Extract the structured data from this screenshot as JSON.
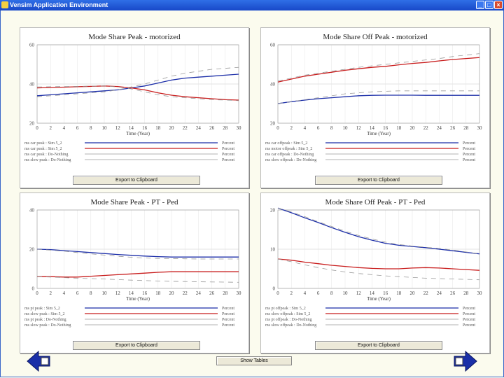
{
  "window": {
    "title": "Vensim Application Environment",
    "buttons": [
      "_",
      "□",
      "×"
    ]
  },
  "buttons": {
    "export_label": "Export to Clipboard",
    "show_tables_label": "Show Tables"
  },
  "colors": {
    "blue": "#1c2ea8",
    "red": "#c81c1c",
    "grid": "#c8c8c8"
  },
  "icons": {
    "back": "left-arrow-icon",
    "forward": "right-arrow-icon"
  },
  "chart_data": [
    {
      "type": "line",
      "title": "Mode Share Peak  -  motorized",
      "xlabel": "Time (Year)",
      "xlim": [
        0,
        30
      ],
      "ylim": [
        20,
        60
      ],
      "yticks": [
        20,
        40,
        60
      ],
      "x": [
        0,
        2,
        4,
        6,
        8,
        10,
        12,
        14,
        16,
        18,
        20,
        22,
        24,
        26,
        28,
        30
      ],
      "series": [
        {
          "name": "ms car peak : Sim 5_2",
          "unit": "Percent",
          "color": "blue",
          "dashed": false,
          "values": [
            34,
            34.5,
            35,
            35.5,
            36,
            36.5,
            37,
            38,
            39,
            40.5,
            42,
            43,
            43.5,
            44,
            44.5,
            45
          ]
        },
        {
          "name": "ms car peak : Sim 5_2",
          "unit": "Percent",
          "color": "red",
          "dashed": false,
          "values": [
            38,
            38.2,
            38.4,
            38.6,
            38.8,
            39,
            38.7,
            38,
            37,
            35.5,
            34.3,
            33.5,
            33,
            32.5,
            32,
            31.8
          ]
        },
        {
          "name": "ms car peak : Do-Nothing",
          "unit": "Percent",
          "color": "grey",
          "dashed": true,
          "values": [
            33.5,
            34,
            34.5,
            35,
            35.5,
            36,
            37,
            38.5,
            40,
            42,
            44,
            45.5,
            46.5,
            47.5,
            48,
            48.5
          ]
        },
        {
          "name": "ms slow peak : Do-Nothing",
          "unit": "Percent",
          "color": "grey",
          "dashed": true,
          "values": [
            38.5,
            38.6,
            38.7,
            38.8,
            38.9,
            39,
            38.5,
            37.5,
            36,
            34.5,
            33.5,
            33,
            32.5,
            32,
            31.8,
            31.5
          ]
        }
      ]
    },
    {
      "type": "line",
      "title": "Mode Share Off Peak  -  motorized",
      "xlabel": "Time (Year)",
      "xlim": [
        0,
        30
      ],
      "ylim": [
        20,
        60
      ],
      "yticks": [
        20,
        40,
        60
      ],
      "x": [
        0,
        2,
        4,
        6,
        8,
        10,
        12,
        14,
        16,
        18,
        20,
        22,
        24,
        26,
        28,
        30
      ],
      "series": [
        {
          "name": "ms car offpeak : Sim 5_2",
          "unit": "Percent",
          "color": "blue",
          "dashed": false,
          "values": [
            30,
            31,
            31.8,
            32.5,
            33,
            33.5,
            34,
            34.2,
            34.3,
            34.3,
            34.3,
            34.2,
            34.2,
            34.2,
            34.2,
            34.2
          ]
        },
        {
          "name": "ms motor offpeak : Sim 5_2",
          "unit": "Percent",
          "color": "red",
          "dashed": false,
          "values": [
            41,
            42.5,
            44,
            45,
            46,
            47,
            47.8,
            48.5,
            49,
            49.8,
            50.5,
            51,
            51.8,
            52.5,
            53,
            53.5
          ]
        },
        {
          "name": "ms car offpeak : Do-Nothing",
          "unit": "Percent",
          "color": "grey",
          "dashed": true,
          "values": [
            30,
            31,
            32,
            33,
            34,
            35,
            35.5,
            36,
            36.3,
            36.5,
            36.5,
            36.5,
            36.5,
            36.5,
            36.5,
            36.5
          ]
        },
        {
          "name": "ms slow offpeak : Do-Nothing",
          "unit": "Percent",
          "color": "grey",
          "dashed": true,
          "values": [
            41.5,
            43,
            44.5,
            45.5,
            46.5,
            47.5,
            48.5,
            49.3,
            50,
            50.8,
            51.5,
            52.3,
            53,
            54,
            54.8,
            55.5
          ]
        }
      ]
    },
    {
      "type": "line",
      "title": "Mode Share Peak  -  PT - Ped",
      "xlabel": "Time (Year)",
      "xlim": [
        0,
        30
      ],
      "ylim": [
        0,
        40
      ],
      "yticks": [
        0,
        20,
        40
      ],
      "x": [
        0,
        2,
        4,
        6,
        8,
        10,
        12,
        14,
        16,
        18,
        20,
        22,
        24,
        26,
        28,
        30
      ],
      "series": [
        {
          "name": "ms pt peak : Sim 5_2",
          "unit": "Percent",
          "color": "blue",
          "dashed": false,
          "values": [
            20,
            19.8,
            19.3,
            18.8,
            18.3,
            17.8,
            17.3,
            16.9,
            16.5,
            16.2,
            16,
            16,
            16,
            16,
            16,
            16
          ]
        },
        {
          "name": "ms slow peak : Sim 5_2",
          "unit": "Percent",
          "color": "red",
          "dashed": false,
          "values": [
            6,
            6,
            5.8,
            5.8,
            6.2,
            6.6,
            7,
            7.4,
            7.8,
            8.2,
            8.5,
            8.5,
            8.5,
            8.5,
            8.5,
            8.5
          ]
        },
        {
          "name": "ms pt peak : Do-Nothing",
          "unit": "Percent",
          "color": "grey",
          "dashed": true,
          "values": [
            20,
            19.5,
            19,
            18.3,
            17.6,
            17,
            16.4,
            15.9,
            15.5,
            15.3,
            15.2,
            15.1,
            15,
            15,
            15,
            15
          ]
        },
        {
          "name": "ms slow peak : Do-Nothing",
          "unit": "Percent",
          "color": "grey",
          "dashed": true,
          "values": [
            6,
            5.8,
            5.5,
            5.2,
            5,
            4.8,
            4.5,
            4.2,
            4,
            3.8,
            3.6,
            3.5,
            3.4,
            3.3,
            3.2,
            3.1
          ]
        }
      ]
    },
    {
      "type": "line",
      "title": "Mode Share Off Peak  -  PT - Ped",
      "xlabel": "Time (Year)",
      "xlim": [
        0,
        30
      ],
      "ylim": [
        0,
        20
      ],
      "yticks": [
        0,
        10,
        20
      ],
      "x": [
        0,
        2,
        4,
        6,
        8,
        10,
        12,
        14,
        16,
        18,
        20,
        22,
        24,
        26,
        28,
        30
      ],
      "series": [
        {
          "name": "ms pt offpeak : Sim 5_2",
          "unit": "Percent",
          "color": "blue",
          "dashed": false,
          "values": [
            20.5,
            19.3,
            18,
            16.8,
            15.5,
            14.3,
            13.2,
            12.3,
            11.5,
            11,
            10.7,
            10.4,
            10,
            9.6,
            9.2,
            8.8
          ]
        },
        {
          "name": "ms slow offpeak : Sim 5_2",
          "unit": "Percent",
          "color": "red",
          "dashed": false,
          "values": [
            7.5,
            7.2,
            6.7,
            6.3,
            5.9,
            5.6,
            5.3,
            5.1,
            5,
            5,
            5.2,
            5.3,
            5.2,
            5,
            4.8,
            4.6
          ]
        },
        {
          "name": "ms pt offpeak : Do-Nothing",
          "unit": "Percent",
          "color": "grey",
          "dashed": true,
          "values": [
            20.5,
            19.5,
            18.3,
            17,
            15.8,
            14.6,
            13.5,
            12.6,
            11.8,
            11.2,
            10.8,
            10.5,
            10.2,
            9.8,
            9.3,
            8.8
          ]
        },
        {
          "name": "ms slow offpeak : Do-Nothing",
          "unit": "Percent",
          "color": "grey",
          "dashed": true,
          "values": [
            7.5,
            6.8,
            6,
            5.3,
            4.7,
            4.2,
            3.8,
            3.5,
            3.2,
            3,
            2.8,
            2.6,
            2.5,
            2.4,
            2.3,
            2.2
          ]
        }
      ]
    }
  ]
}
